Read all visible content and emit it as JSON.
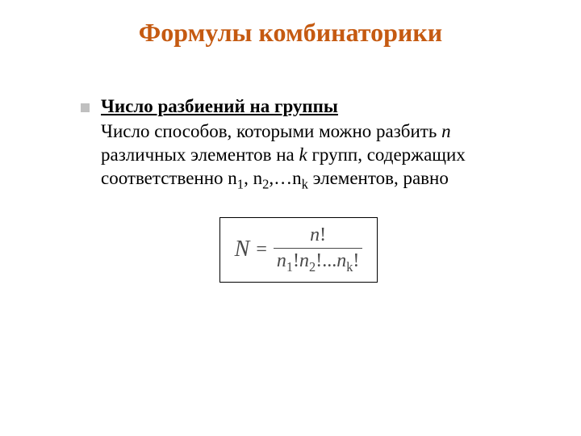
{
  "title": {
    "text": "Формулы комбинаторики",
    "color": "#c55a11",
    "fontsize": 32
  },
  "subtitle": {
    "text": "Число разбиений на группы",
    "fontsize": 23
  },
  "body": {
    "line1_a": "Число способов, которыми можно разбить ",
    "line1_n": "n",
    "line2_a": "различных элементов на ",
    "line2_k": "k",
    "line2_b": " групп, содержащих",
    "line3_a": "соответственно n",
    "line3_s1": "1",
    "line3_b": ", n",
    "line3_s2": "2",
    "line3_c": ",…n",
    "line3_sk": "k",
    "line3_d": "     элементов, равно",
    "fontsize": 23,
    "color": "#000000"
  },
  "formula": {
    "lhs": "N",
    "eq": "=",
    "numerator_n": "n",
    "numerator_excl": "!",
    "denom_n1": "n",
    "denom_s1": "1",
    "denom_ex1": "!",
    "denom_n2": "n",
    "denom_s2": "2",
    "denom_ex2": "!",
    "denom_dots": "...",
    "denom_nk": "n",
    "denom_sk": "k",
    "denom_exk": "!",
    "box_border": "#000000",
    "text_color": "#4a4a4a"
  },
  "bullet_color": "#c0c0c0",
  "background": "#ffffff"
}
